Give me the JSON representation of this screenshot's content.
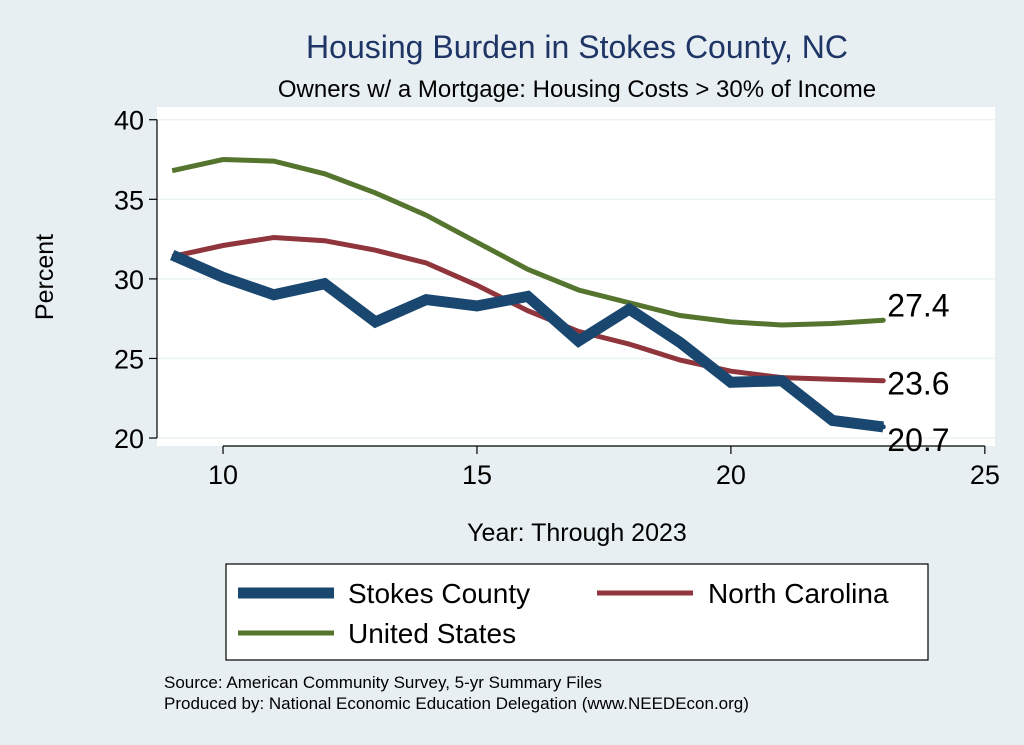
{
  "chart_data": {
    "type": "line",
    "title": "Housing Burden in Stokes County, NC",
    "subtitle": "Owners w/ a Mortgage: Housing Costs > 30% of Income",
    "xlabel": "Year: Through 2023",
    "ylabel": "Percent",
    "xlim": [
      8.7,
      25.2
    ],
    "ylim": [
      19.5,
      40.8
    ],
    "x_ticks": [
      10,
      15,
      20,
      25
    ],
    "y_ticks": [
      20,
      25,
      30,
      35,
      40
    ],
    "grid": true,
    "series": [
      {
        "name": "Stokes County",
        "color": "#1a476f",
        "x": [
          9,
          10,
          11,
          12,
          13,
          14,
          15,
          16,
          17,
          18,
          19,
          20,
          21,
          22,
          23
        ],
        "values": [
          31.5,
          30.1,
          29.0,
          29.7,
          27.3,
          28.7,
          28.3,
          28.9,
          26.1,
          28.1,
          26.0,
          23.5,
          23.6,
          21.1,
          20.7
        ],
        "end_label": "20.7"
      },
      {
        "name": "North Carolina",
        "color": "#90353b",
        "x": [
          9,
          10,
          11,
          12,
          13,
          14,
          15,
          16,
          17,
          18,
          19,
          20,
          21,
          22,
          23
        ],
        "values": [
          31.4,
          32.1,
          32.6,
          32.4,
          31.8,
          31.0,
          29.6,
          28.0,
          26.7,
          25.9,
          24.9,
          24.2,
          23.8,
          23.7,
          23.6
        ],
        "end_label": "23.6"
      },
      {
        "name": "United States",
        "color": "#55752f",
        "x": [
          9,
          10,
          11,
          12,
          13,
          14,
          15,
          16,
          17,
          18,
          19,
          20,
          21,
          22,
          23
        ],
        "values": [
          36.8,
          37.5,
          37.4,
          36.6,
          35.4,
          34.0,
          32.3,
          30.6,
          29.3,
          28.5,
          27.7,
          27.3,
          27.1,
          27.2,
          27.4
        ],
        "end_label": "27.4"
      }
    ],
    "legend": {
      "placement": "bottom",
      "entries": [
        "Stokes County",
        "North Carolina",
        "United States"
      ]
    },
    "source_lines": [
      "Source: American Community Survey, 5-yr Summary Files",
      "Produced by: National Economic Education Delegation (www.NEEDEcon.org)"
    ]
  }
}
